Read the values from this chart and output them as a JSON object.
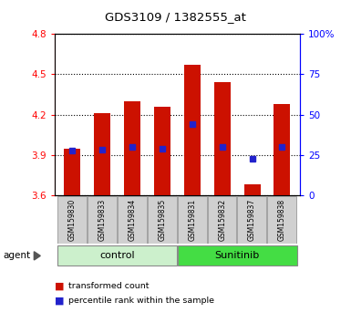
{
  "title": "GDS3109 / 1382555_at",
  "samples": [
    "GSM159830",
    "GSM159833",
    "GSM159834",
    "GSM159835",
    "GSM159831",
    "GSM159832",
    "GSM159837",
    "GSM159838"
  ],
  "red_values": [
    3.95,
    4.21,
    4.3,
    4.26,
    4.57,
    4.44,
    3.68,
    4.28
  ],
  "blue_values": [
    3.93,
    3.94,
    3.96,
    3.95,
    4.13,
    3.96,
    3.87,
    3.96
  ],
  "ymin": 3.6,
  "ymax": 4.8,
  "y2min": 0,
  "y2max": 100,
  "yticks": [
    3.6,
    3.9,
    4.2,
    4.5,
    4.8
  ],
  "y2ticks": [
    0,
    25,
    50,
    75,
    100
  ],
  "y2tick_labels": [
    "0",
    "25",
    "50",
    "75",
    "100%"
  ],
  "group_colors": {
    "control": "#ccf0cc",
    "Sunitinib": "#44dd44"
  },
  "bar_color": "#cc1100",
  "blue_color": "#2222cc",
  "bar_bottom": 3.6,
  "legend1": "transformed count",
  "legend2": "percentile rank within the sample"
}
